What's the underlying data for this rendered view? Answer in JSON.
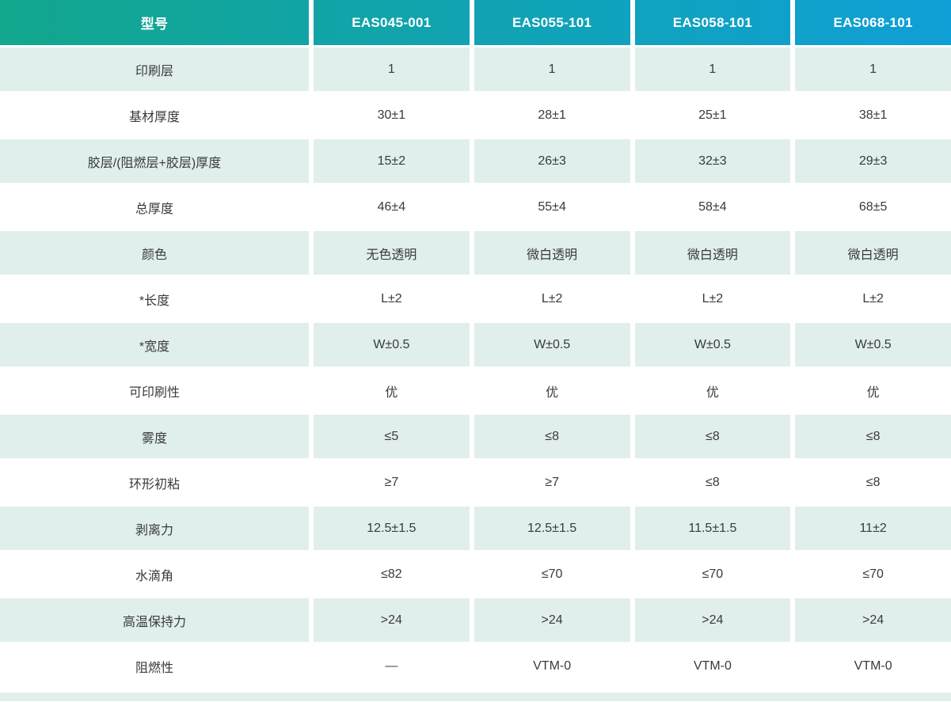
{
  "chart_data": {
    "type": "table",
    "columns": [
      "型号",
      "EAS045-001",
      "EAS055-101",
      "EAS058-101",
      "EAS068-101"
    ],
    "rows": [
      [
        "印刷层",
        "1",
        "1",
        "1",
        "1"
      ],
      [
        "基材厚度",
        "30±1",
        "28±1",
        "25±1",
        "38±1"
      ],
      [
        "胶层/(阻燃层+胶层)厚度",
        "15±2",
        "26±3",
        "32±3",
        "29±3"
      ],
      [
        "总厚度",
        "46±4",
        "55±4",
        "58±4",
        "68±5"
      ],
      [
        "颜色",
        "无色透明",
        "微白透明",
        "微白透明",
        "微白透明"
      ],
      [
        "*长度",
        "L±2",
        "L±2",
        "L±2",
        "L±2"
      ],
      [
        "*宽度",
        "W±0.5",
        "W±0.5",
        "W±0.5",
        "W±0.5"
      ],
      [
        "可印刷性",
        "优",
        "优",
        "优",
        "优"
      ],
      [
        "雾度",
        "≤5",
        "≤8",
        "≤8",
        "≤8"
      ],
      [
        "环形初粘",
        "≥7",
        "≥7",
        "≤8",
        "≤8"
      ],
      [
        "剥离力",
        "12.5±1.5",
        "12.5±1.5",
        "11.5±1.5",
        "11±2"
      ],
      [
        "水滴角",
        "≤82",
        "≤70",
        "≤70",
        "≤70"
      ],
      [
        "高温保持力",
        ">24",
        ">24",
        ">24",
        ">24"
      ],
      [
        "阻燃性",
        "—",
        "VTM-0",
        "VTM-0",
        "VTM-0"
      ]
    ],
    "layout_hints": {
      "striped_rows": "odd data rows tinted green, starting with first data row",
      "header_gradient": "left-to-right green to blue"
    }
  },
  "colors": {
    "header_gradient_start": "#12a78e",
    "header_gradient_end": "#0f9fd6",
    "row_alt_bg": "#e0efeb",
    "body_text": "#3a3a3e",
    "header_text": "#ffffff"
  }
}
